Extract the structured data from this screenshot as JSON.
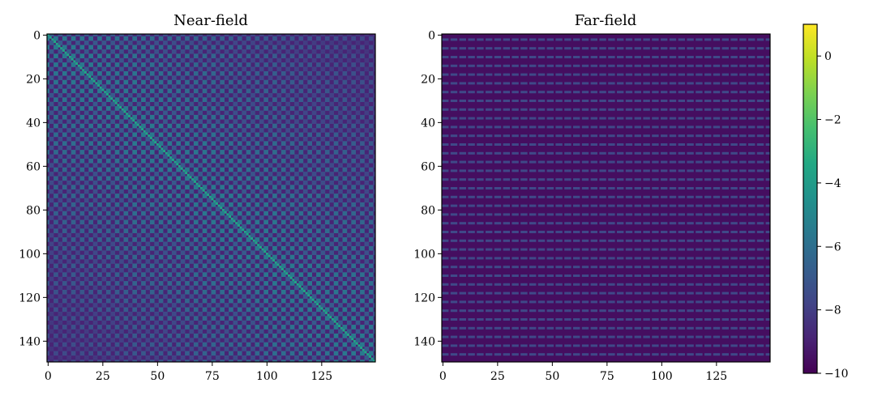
{
  "chart_data": [
    {
      "type": "heatmap",
      "title": "Near-field",
      "rows": 150,
      "cols": 150,
      "description_pattern": "periodic block pattern with bright main diagonal",
      "diagonal_value": -3.5,
      "pattern_high_value": -5.5,
      "pattern_mid_value": -6.8,
      "background_value": -8.9,
      "block_period": 4,
      "xlim": [
        -0.5,
        149.5
      ],
      "ylim": [
        149.5,
        -0.5
      ],
      "xticks": [
        0,
        25,
        50,
        75,
        100,
        125
      ],
      "yticks": [
        0,
        20,
        40,
        60,
        80,
        100,
        120,
        140
      ],
      "xtick_labels": [
        "0",
        "25",
        "50",
        "75",
        "100",
        "125"
      ],
      "ytick_labels": [
        "0",
        "20",
        "40",
        "60",
        "80",
        "100",
        "120",
        "140"
      ],
      "xlabel": "",
      "ylabel": ""
    },
    {
      "type": "heatmap",
      "title": "Far-field",
      "rows": 150,
      "cols": 150,
      "description_pattern": "horizontal dashed stripes every 4 rows",
      "stripe_value": -7.6,
      "background_value": -9.6,
      "stripe_period": 4,
      "xlim": [
        -0.5,
        149.5
      ],
      "ylim": [
        149.5,
        -0.5
      ],
      "xticks": [
        0,
        25,
        50,
        75,
        100,
        125
      ],
      "yticks": [
        0,
        20,
        40,
        60,
        80,
        100,
        120,
        140
      ],
      "xtick_labels": [
        "0",
        "25",
        "50",
        "75",
        "100",
        "125"
      ],
      "ytick_labels": [
        "0",
        "20",
        "40",
        "60",
        "80",
        "100",
        "120",
        "140"
      ],
      "xlabel": "",
      "ylabel": ""
    }
  ],
  "colorbar": {
    "colormap": "viridis",
    "vmin": -10,
    "vmax": 1,
    "ticks": [
      0,
      -2,
      -4,
      -6,
      -8,
      -10
    ],
    "tick_labels": [
      "0",
      "−2",
      "−4",
      "−6",
      "−8",
      "−10"
    ]
  }
}
